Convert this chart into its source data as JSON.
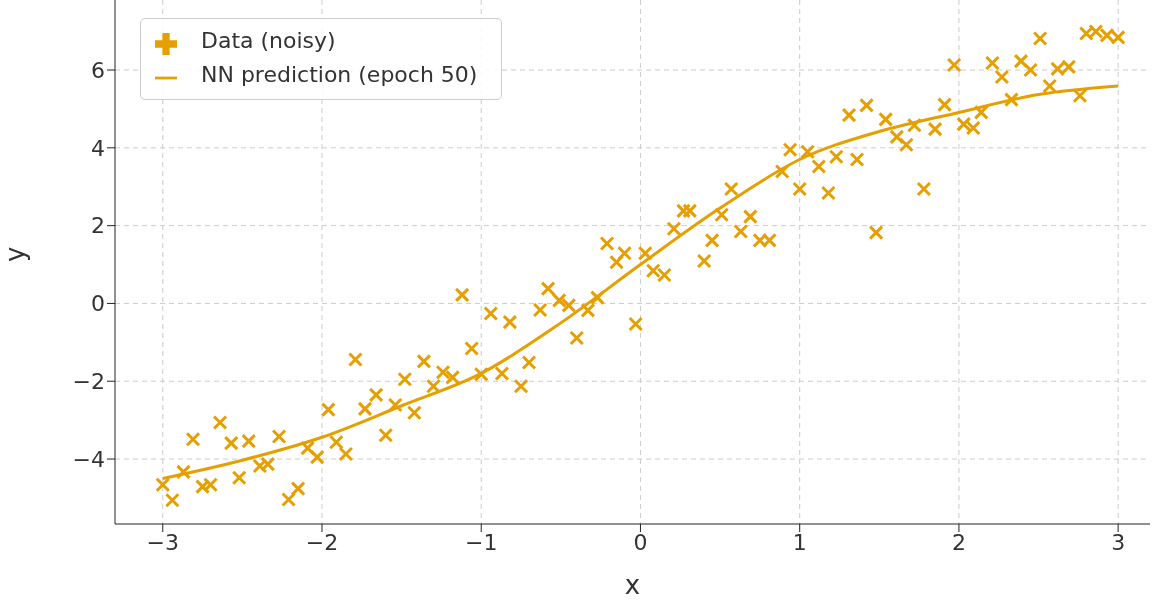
{
  "chart_data": {
    "type": "scatter",
    "xlabel": "x",
    "ylabel": "y",
    "xlim": [
      -3.3,
      3.2
    ],
    "ylim": [
      -5.67,
      7.8
    ],
    "xticks": [
      -3,
      -2,
      -1,
      0,
      1,
      2,
      3
    ],
    "yticks": [
      -4,
      -2,
      0,
      2,
      4,
      6
    ],
    "grid": true,
    "legend": "top left",
    "series": [
      {
        "name": "Data (noisy)",
        "marker": "cross",
        "color": "#e69f00",
        "x": [
          -3.0,
          -2.94,
          -2.87,
          -2.81,
          -2.75,
          -2.7,
          -2.64,
          -2.57,
          -2.52,
          -2.46,
          -2.39,
          -2.34,
          -2.27,
          -2.21,
          -2.15,
          -2.09,
          -2.03,
          -1.96,
          -1.91,
          -1.85,
          -1.79,
          -1.73,
          -1.66,
          -1.6,
          -1.54,
          -1.48,
          -1.42,
          -1.36,
          -1.3,
          -1.24,
          -1.18,
          -1.12,
          -1.06,
          -1.0,
          -0.94,
          -0.87,
          -0.82,
          -0.75,
          -0.7,
          -0.63,
          -0.58,
          -0.51,
          -0.45,
          -0.4,
          -0.33,
          -0.27,
          -0.21,
          -0.15,
          -0.1,
          -0.03,
          0.03,
          0.08,
          0.15,
          0.21,
          0.27,
          0.31,
          0.4,
          0.45,
          0.51,
          0.57,
          0.63,
          0.69,
          0.75,
          0.81,
          0.89,
          0.94,
          1.0,
          1.05,
          1.12,
          1.18,
          1.23,
          1.31,
          1.36,
          1.42,
          1.48,
          1.54,
          1.61,
          1.67,
          1.72,
          1.78,
          1.85,
          1.91,
          1.97,
          2.03,
          2.09,
          2.14,
          2.21,
          2.27,
          2.33,
          2.39,
          2.45,
          2.51,
          2.57,
          2.62,
          2.69,
          2.76,
          2.8,
          2.86,
          2.93,
          3.0
        ],
        "values": [
          -4.66,
          -5.06,
          -4.33,
          -3.49,
          -4.71,
          -4.66,
          -3.06,
          -3.59,
          -4.48,
          -3.54,
          -4.18,
          -4.13,
          -3.42,
          -5.04,
          -4.76,
          -3.72,
          -3.95,
          -2.73,
          -3.57,
          -3.87,
          -1.44,
          -2.71,
          -2.35,
          -3.39,
          -2.61,
          -1.95,
          -2.81,
          -1.49,
          -2.13,
          -1.77,
          -1.9,
          0.22,
          -1.16,
          -1.82,
          -0.26,
          -1.8,
          -0.48,
          -2.13,
          -1.52,
          -0.17,
          0.38,
          0.08,
          -0.05,
          -0.89,
          -0.18,
          0.15,
          1.54,
          1.06,
          1.29,
          -0.53,
          1.29,
          0.84,
          0.73,
          1.92,
          2.38,
          2.38,
          1.09,
          1.62,
          2.28,
          2.94,
          1.85,
          2.23,
          1.62,
          1.62,
          3.39,
          3.95,
          2.94,
          3.9,
          3.52,
          2.84,
          3.77,
          4.84,
          3.7,
          5.09,
          1.82,
          4.73,
          4.28,
          4.08,
          4.58,
          2.94,
          4.48,
          5.11,
          6.13,
          4.61,
          4.51,
          4.91,
          6.18,
          5.82,
          5.24,
          6.23,
          6.0,
          6.81,
          5.59,
          6.03,
          6.08,
          5.34,
          6.94,
          6.99,
          6.89,
          6.84
        ]
      },
      {
        "name": "NN prediction (epoch 50)",
        "type": "line",
        "marker": "none",
        "line_style": "solid",
        "color": "#e69f00",
        "x": [
          -3,
          -2.5,
          -2,
          -1.5,
          -1,
          -0.5,
          0,
          0.5,
          1,
          1.5,
          2,
          2.5,
          3
        ],
        "values": [
          -4.5,
          -4.03,
          -3.44,
          -2.63,
          -1.8,
          -0.5,
          1.0,
          2.45,
          3.7,
          4.42,
          4.91,
          5.37,
          5.59
        ]
      }
    ]
  }
}
